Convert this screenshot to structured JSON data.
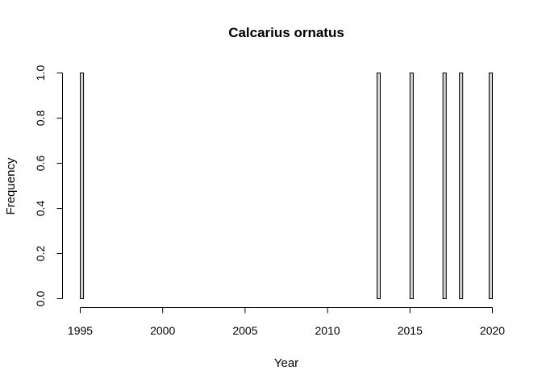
{
  "chart_data": {
    "type": "bar",
    "title": "Calcarius ornatus",
    "xlabel": "Year",
    "ylabel": "Frequency",
    "xlim": [
      1995,
      2020
    ],
    "ylim": [
      0,
      1
    ],
    "bin_width": 0.2,
    "x_ticks": [
      "1995",
      "2000",
      "2005",
      "2010",
      "2015",
      "2020"
    ],
    "y_ticks": [
      "0.0",
      "0.2",
      "0.4",
      "0.6",
      "0.8",
      "1.0"
    ],
    "bars": [
      {
        "x": 1995,
        "value": 1
      },
      {
        "x": 2013,
        "value": 1
      },
      {
        "x": 2015,
        "value": 1
      },
      {
        "x": 2017,
        "value": 1
      },
      {
        "x": 2018,
        "value": 1
      },
      {
        "x": 2020,
        "value": 1
      }
    ],
    "bar_fill": "#d3d3d3",
    "bar_stroke": "#000000"
  }
}
